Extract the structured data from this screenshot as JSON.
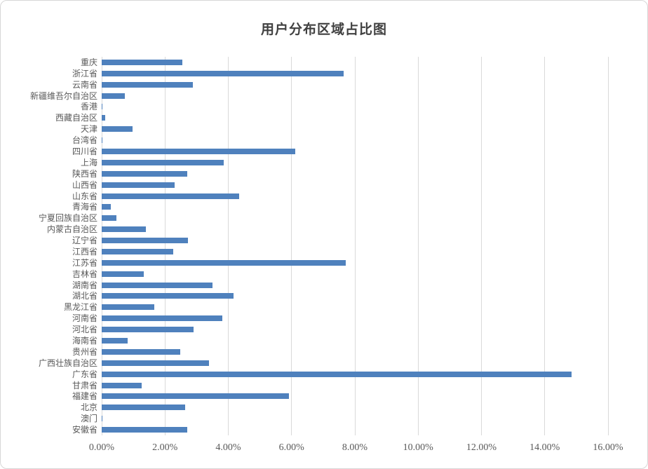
{
  "chart_data": {
    "type": "bar",
    "orientation": "horizontal",
    "title": "用户分布区域占比图",
    "categories": [
      "重庆",
      "浙江省",
      "云南省",
      "新疆维吾尔自治区",
      "香港",
      "西藏自治区",
      "天津",
      "台湾省",
      "四川省",
      "上海",
      "陕西省",
      "山西省",
      "山东省",
      "青海省",
      "宁夏回族自治区",
      "内蒙古自治区",
      "辽宁省",
      "江西省",
      "江苏省",
      "吉林省",
      "湖南省",
      "湖北省",
      "黑龙江省",
      "河南省",
      "河北省",
      "海南省",
      "贵州省",
      "广西壮族自治区",
      "广东省",
      "甘肃省",
      "福建省",
      "北京",
      "澳门",
      "安徽省"
    ],
    "values": [
      2.54,
      7.64,
      2.87,
      0.73,
      0.02,
      0.1,
      0.98,
      0.02,
      6.11,
      3.86,
      2.7,
      2.3,
      4.35,
      0.29,
      0.46,
      1.4,
      2.73,
      2.26,
      7.71,
      1.33,
      3.5,
      4.17,
      1.66,
      3.82,
      2.91,
      0.81,
      2.48,
      3.4,
      14.85,
      1.26,
      5.91,
      2.63,
      0.02,
      2.71
    ],
    "value_unit": "%",
    "xlabel": "",
    "ylabel": "",
    "xlim": [
      0,
      16
    ],
    "x_tick_labels": [
      "0.00%",
      "2.00%",
      "4.00%",
      "6.00%",
      "8.00%",
      "10.00%",
      "12.00%",
      "14.00%",
      "16.00%"
    ],
    "grid": true,
    "legend": false,
    "bar_color": "#4f81bd",
    "gridline_color": "#d9d9d9",
    "text_color": "#595959",
    "title_color": "#404040"
  }
}
